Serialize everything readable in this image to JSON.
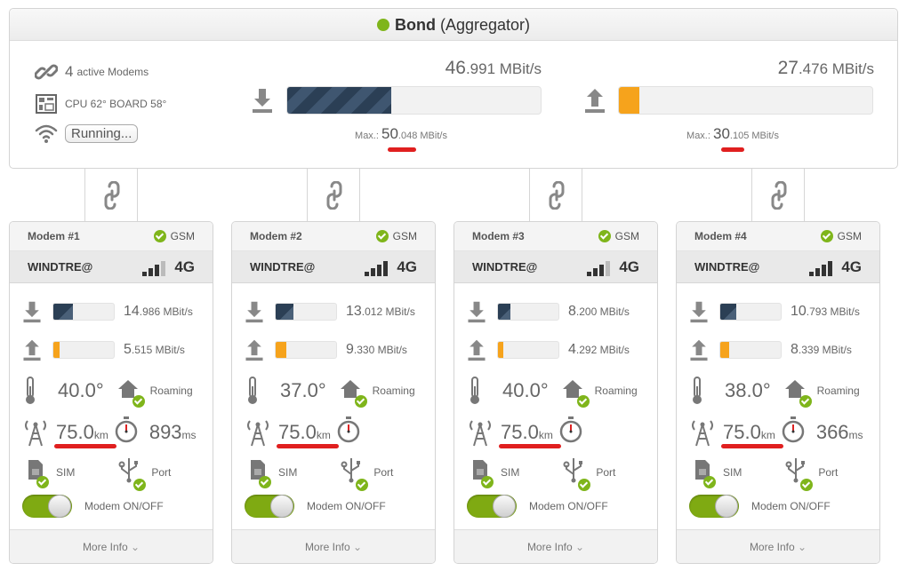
{
  "bond": {
    "status_color": "#7fb51b",
    "title": "Bond",
    "subtitle": "(Aggregator)",
    "active_count": "4",
    "active_label": "active Modems",
    "cpu_text": "CPU 62° BOARD 58°",
    "status_button": "Running...",
    "download": {
      "int": "46",
      "dec": ".991 MBit/s",
      "fill": 0.41,
      "max_label": "Max.:",
      "max_int": "50",
      "max_dec": ".048 MBit/s"
    },
    "upload": {
      "int": "27",
      "dec": ".476 MBit/s",
      "fill": 0.08,
      "max_label": "Max.:",
      "max_int": "30",
      "max_dec": ".105 MBit/s"
    }
  },
  "modems": [
    {
      "name": "Modem #1",
      "net_label": "GSM",
      "operator": "WINDTRE@",
      "tech": "4G",
      "signal_bars": 3,
      "down_int": "14",
      "down_dec": ".986 MBit/s",
      "down_fill": 0.33,
      "up_int": "5",
      "up_dec": ".515 MBit/s",
      "up_fill": 0.1,
      "temp": "40.0°",
      "roaming": "Roaming",
      "distance": "75.0",
      "distance_unit": "km",
      "latency": "893",
      "latency_unit": "ms",
      "sim": "SIM",
      "port": "Port",
      "power": "Modem ON/OFF",
      "more": "More Info"
    },
    {
      "name": "Modem #2",
      "net_label": "GSM",
      "operator": "WINDTRE@",
      "tech": "4G",
      "signal_bars": 4,
      "down_int": "13",
      "down_dec": ".012 MBit/s",
      "down_fill": 0.3,
      "up_int": "9",
      "up_dec": ".330 MBit/s",
      "up_fill": 0.18,
      "temp": "37.0°",
      "roaming": "Roaming",
      "distance": "75.0",
      "distance_unit": "km",
      "latency": "",
      "latency_unit": "",
      "sim": "SIM",
      "port": "Port",
      "power": "Modem ON/OFF",
      "more": "More Info"
    },
    {
      "name": "Modem #3",
      "net_label": "GSM",
      "operator": "WINDTRE@",
      "tech": "4G",
      "signal_bars": 3,
      "down_int": "8",
      "down_dec": ".200 MBit/s",
      "down_fill": 0.2,
      "up_int": "4",
      "up_dec": ".292 MBit/s",
      "up_fill": 0.09,
      "temp": "40.0°",
      "roaming": "Roaming",
      "distance": "75.0",
      "distance_unit": "km",
      "latency": "",
      "latency_unit": "",
      "sim": "SIM",
      "port": "Port",
      "power": "Modem ON/OFF",
      "more": "More Info"
    },
    {
      "name": "Modem #4",
      "net_label": "GSM",
      "operator": "WINDTRE@",
      "tech": "4G",
      "signal_bars": 4,
      "down_int": "10",
      "down_dec": ".793 MBit/s",
      "down_fill": 0.26,
      "up_int": "8",
      "up_dec": ".339 MBit/s",
      "up_fill": 0.14,
      "temp": "38.0°",
      "roaming": "Roaming",
      "distance": "75.0",
      "distance_unit": "km",
      "latency": "366",
      "latency_unit": "ms",
      "sim": "SIM",
      "port": "Port",
      "power": "Modem ON/OFF",
      "more": "More Info"
    }
  ]
}
